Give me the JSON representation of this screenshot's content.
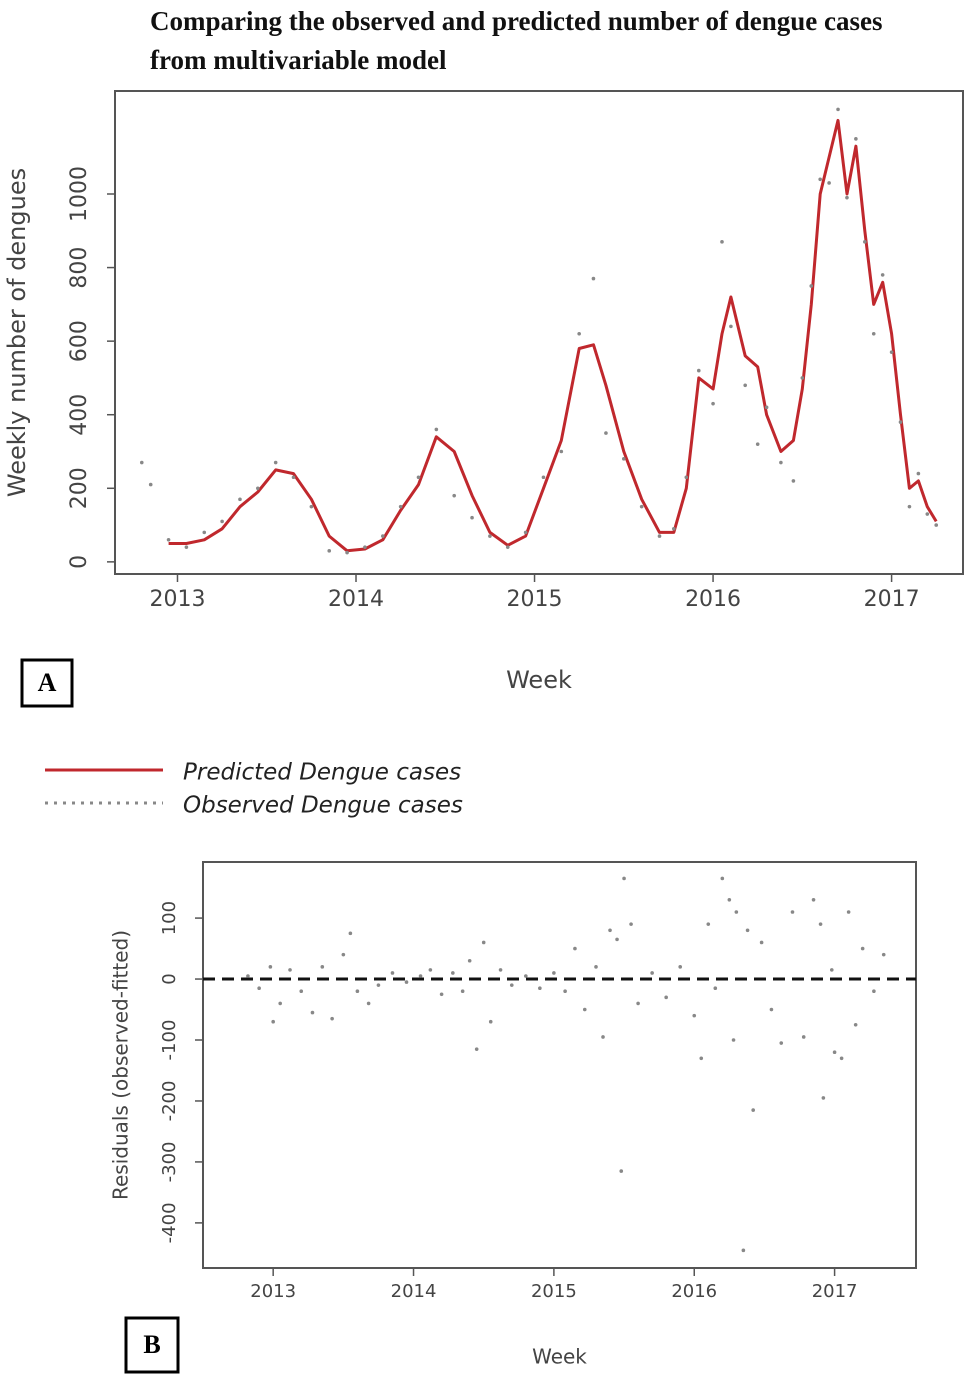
{
  "chart_data": [
    {
      "type": "line",
      "title": "Comparing the observed and predicted number of dengue cases from multivariable model",
      "panel_label": "A",
      "x_label": "Week",
      "y_label": "Weekly number of dengues",
      "x": [
        2012.8,
        2012.85,
        2012.95,
        2013.05,
        2013.15,
        2013.25,
        2013.35,
        2013.45,
        2013.55,
        2013.65,
        2013.75,
        2013.85,
        2013.95,
        2014.05,
        2014.15,
        2014.25,
        2014.35,
        2014.45,
        2014.55,
        2014.65,
        2014.75,
        2014.85,
        2014.95,
        2015.05,
        2015.15,
        2015.25,
        2015.33,
        2015.4,
        2015.5,
        2015.6,
        2015.7,
        2015.78,
        2015.85,
        2015.92,
        2016.0,
        2016.05,
        2016.1,
        2016.18,
        2016.25,
        2016.3,
        2016.38,
        2016.45,
        2016.5,
        2016.55,
        2016.6,
        2016.65,
        2016.7,
        2016.75,
        2016.8,
        2016.85,
        2016.9,
        2016.95,
        2017.0,
        2017.05,
        2017.1,
        2017.15,
        2017.2,
        2017.25
      ],
      "series": [
        {
          "name": "Predicted Dengue cases",
          "color": "#c0282d",
          "style": "line",
          "values": [
            null,
            null,
            50,
            50,
            60,
            90,
            150,
            190,
            250,
            240,
            170,
            70,
            30,
            35,
            60,
            140,
            210,
            340,
            300,
            180,
            80,
            45,
            70,
            200,
            330,
            580,
            590,
            480,
            300,
            170,
            80,
            80,
            200,
            500,
            470,
            620,
            720,
            560,
            530,
            400,
            300,
            330,
            470,
            700,
            1000,
            1100,
            1200,
            1000,
            1130,
            900,
            700,
            760,
            620,
            400,
            200,
            220,
            150,
            110
          ]
        },
        {
          "name": "Observed Dengue cases",
          "color": "#888888",
          "style": "points",
          "values": [
            270,
            210,
            60,
            40,
            80,
            110,
            170,
            200,
            270,
            230,
            150,
            30,
            25,
            40,
            70,
            150,
            230,
            360,
            180,
            120,
            70,
            40,
            80,
            230,
            300,
            620,
            770,
            350,
            280,
            150,
            70,
            90,
            230,
            520,
            430,
            870,
            640,
            480,
            320,
            420,
            270,
            220,
            500,
            750,
            1040,
            1030,
            1230,
            990,
            1150,
            870,
            620,
            780,
            570,
            380,
            150,
            240,
            130,
            100
          ]
        }
      ],
      "xlim": [
        2012.65,
        2017.4
      ],
      "xticks": [
        2013,
        2014,
        2015,
        2016,
        2017
      ],
      "ylim": [
        -33,
        1280
      ],
      "yticks": [
        0,
        200,
        400,
        600,
        800,
        1000
      ]
    },
    {
      "type": "scatter",
      "panel_label": "B",
      "x_label": "Week",
      "y_label": "Residuals (observed-fitted)",
      "hline": 0,
      "x": [
        2012.82,
        2012.9,
        2012.98,
        2013.0,
        2013.05,
        2013.12,
        2013.2,
        2013.28,
        2013.35,
        2013.42,
        2013.5,
        2013.55,
        2013.6,
        2013.68,
        2013.75,
        2013.85,
        2013.95,
        2014.05,
        2014.12,
        2014.2,
        2014.28,
        2014.35,
        2014.4,
        2014.45,
        2014.5,
        2014.55,
        2014.62,
        2014.7,
        2014.8,
        2014.9,
        2015.0,
        2015.08,
        2015.15,
        2015.22,
        2015.3,
        2015.35,
        2015.4,
        2015.45,
        2015.48,
        2015.5,
        2015.55,
        2015.6,
        2015.7,
        2015.8,
        2015.9,
        2016.0,
        2016.05,
        2016.1,
        2016.15,
        2016.2,
        2016.25,
        2016.28,
        2016.3,
        2016.35,
        2016.38,
        2016.42,
        2016.48,
        2016.55,
        2016.62,
        2016.7,
        2016.78,
        2016.85,
        2016.9,
        2016.92,
        2016.98,
        2017.0,
        2017.05,
        2017.1,
        2017.15,
        2017.2,
        2017.28,
        2017.35
      ],
      "series": [
        {
          "color": "#888888",
          "values": [
            5,
            -15,
            20,
            -70,
            -40,
            15,
            -20,
            -55,
            20,
            -65,
            40,
            75,
            -20,
            -40,
            -10,
            10,
            -5,
            5,
            15,
            -25,
            10,
            -20,
            30,
            -115,
            60,
            -70,
            15,
            -10,
            5,
            -15,
            10,
            -20,
            50,
            -50,
            20,
            -95,
            80,
            65,
            -315,
            165,
            90,
            -40,
            10,
            -30,
            20,
            -60,
            -130,
            90,
            -15,
            165,
            130,
            -100,
            110,
            -445,
            80,
            -215,
            60,
            -50,
            -105,
            110,
            -95,
            130,
            90,
            -195,
            15,
            -120,
            -130,
            110,
            -75,
            50,
            -20,
            40
          ]
        }
      ],
      "xlim": [
        2012.5,
        2017.58
      ],
      "xticks": [
        2013,
        2014,
        2015,
        2016,
        2017
      ],
      "ylim": [
        -474,
        192
      ],
      "yticks": [
        -400,
        -300,
        -200,
        -100,
        0,
        100
      ]
    }
  ]
}
